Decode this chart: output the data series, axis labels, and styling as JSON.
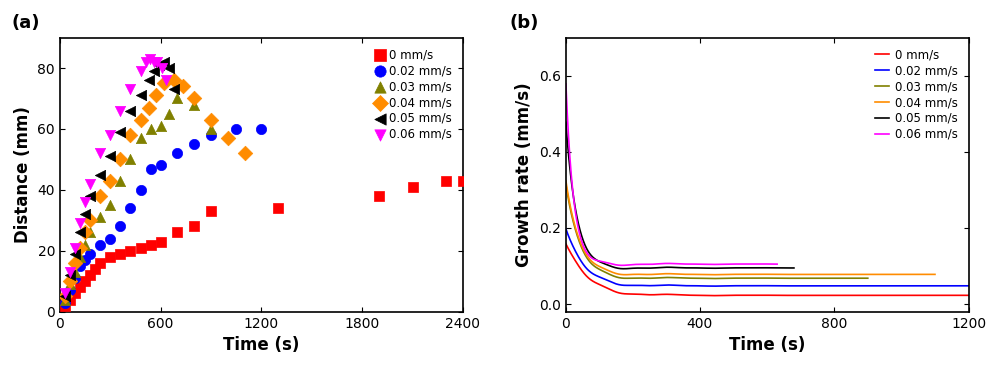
{
  "panel_a": {
    "title": "(a)",
    "xlabel": "Time (s)",
    "ylabel": "Distance (mm)",
    "xlim": [
      0,
      2400
    ],
    "ylim": [
      0,
      90
    ],
    "xticks": [
      0,
      600,
      1200,
      1800,
      2400
    ],
    "yticks": [
      0,
      20,
      40,
      60,
      80
    ],
    "series": [
      {
        "label": "0 mm/s",
        "color": "#FF0000",
        "marker": "s",
        "x": [
          30,
          60,
          90,
          120,
          150,
          180,
          210,
          240,
          300,
          360,
          420,
          480,
          540,
          600,
          700,
          800,
          900,
          1300,
          1900,
          2100,
          2300,
          2400
        ],
        "y": [
          2,
          4,
          6,
          8,
          10,
          12,
          14,
          16,
          18,
          19,
          20,
          21,
          22,
          23,
          26,
          28,
          33,
          34,
          38,
          41,
          43,
          43
        ]
      },
      {
        "label": "0.02 mm/s",
        "color": "#0000FF",
        "marker": "o",
        "x": [
          30,
          60,
          90,
          120,
          150,
          180,
          240,
          300,
          360,
          420,
          480,
          540,
          600,
          700,
          800,
          900,
          1050,
          1200
        ],
        "y": [
          3,
          7,
          11,
          15,
          17,
          19,
          22,
          24,
          28,
          34,
          40,
          47,
          48,
          52,
          55,
          58,
          60,
          60
        ]
      },
      {
        "label": "0.03 mm/s",
        "color": "#808000",
        "marker": "^",
        "x": [
          30,
          60,
          90,
          120,
          150,
          180,
          240,
          300,
          360,
          420,
          480,
          540,
          600,
          650,
          700,
          800,
          900
        ],
        "y": [
          4,
          9,
          13,
          18,
          22,
          26,
          31,
          35,
          43,
          50,
          57,
          60,
          61,
          65,
          70,
          68,
          60
        ]
      },
      {
        "label": "0.04 mm/s",
        "color": "#FF8C00",
        "marker": "D",
        "x": [
          30,
          60,
          90,
          120,
          150,
          180,
          240,
          300,
          360,
          420,
          480,
          530,
          570,
          620,
          680,
          730,
          800,
          900,
          1000,
          1100
        ],
        "y": [
          5,
          10,
          16,
          21,
          26,
          30,
          38,
          43,
          50,
          58,
          63,
          67,
          71,
          75,
          76,
          74,
          70,
          63,
          57,
          52
        ]
      },
      {
        "label": "0.05 mm/s",
        "color": "#000000",
        "marker": "<",
        "x": [
          30,
          60,
          90,
          120,
          150,
          180,
          240,
          300,
          360,
          420,
          480,
          530,
          560,
          590,
          620,
          650,
          680
        ],
        "y": [
          5,
          12,
          19,
          26,
          32,
          38,
          45,
          51,
          59,
          66,
          71,
          76,
          79,
          81,
          82,
          80,
          73
        ]
      },
      {
        "label": "0.06 mm/s",
        "color": "#FF00FF",
        "marker": "v",
        "x": [
          30,
          60,
          90,
          120,
          150,
          180,
          240,
          300,
          360,
          420,
          480,
          510,
          535,
          560,
          580,
          605,
          630
        ],
        "y": [
          6,
          13,
          21,
          29,
          36,
          42,
          52,
          58,
          66,
          73,
          79,
          82,
          83,
          82,
          82,
          80,
          76
        ]
      }
    ]
  },
  "panel_b": {
    "title": "(b)",
    "xlabel": "Time (s)",
    "ylabel": "Growth rate (mm/s)",
    "xlim": [
      0,
      1200
    ],
    "ylim": [
      -0.02,
      0.7
    ],
    "xticks": [
      0,
      400,
      800,
      1200
    ],
    "yticks": [
      0.0,
      0.2,
      0.4,
      0.6
    ],
    "series": [
      {
        "label": "0 mm/s",
        "color": "#FF0000",
        "t_end": 1200,
        "peak": 0.16,
        "steady": 0.023,
        "decay_tau": 60
      },
      {
        "label": "0.02 mm/s",
        "color": "#0000FF",
        "t_end": 1200,
        "peak": 0.2,
        "steady": 0.048,
        "decay_tau": 50
      },
      {
        "label": "0.03 mm/s",
        "color": "#808000",
        "t_end": 900,
        "peak": 0.32,
        "steady": 0.068,
        "decay_tau": 40
      },
      {
        "label": "0.04 mm/s",
        "color": "#FF8C00",
        "t_end": 1100,
        "peak": 0.33,
        "steady": 0.078,
        "decay_tau": 38
      },
      {
        "label": "0.05 mm/s",
        "color": "#000000",
        "t_end": 680,
        "peak": 0.49,
        "steady": 0.095,
        "decay_tau": 30
      },
      {
        "label": "0.06 mm/s",
        "color": "#FF00FF",
        "t_end": 630,
        "peak": 0.6,
        "steady": 0.105,
        "decay_tau": 22
      }
    ]
  }
}
